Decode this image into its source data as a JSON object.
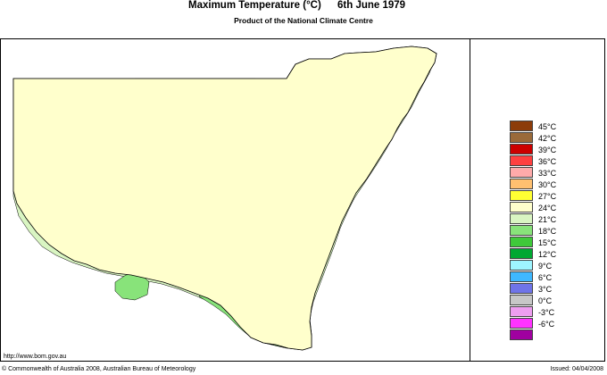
{
  "header": {
    "title": "Maximum Temperature (°C)",
    "date": "6th June 1979",
    "subtitle": "Product of the National Climate Centre"
  },
  "legend": {
    "items": [
      {
        "label": "45°C",
        "color": "#8c3c0a"
      },
      {
        "label": "42°C",
        "color": "#9a6a3a"
      },
      {
        "label": "39°C",
        "color": "#cc0000"
      },
      {
        "label": "36°C",
        "color": "#ff4040"
      },
      {
        "label": "33°C",
        "color": "#ffaaaa"
      },
      {
        "label": "30°C",
        "color": "#ffc070"
      },
      {
        "label": "27°C",
        "color": "#ffff33"
      },
      {
        "label": "24°C",
        "color": "#ffffcc"
      },
      {
        "label": "21°C",
        "color": "#d9f5c2"
      },
      {
        "label": "18°C",
        "color": "#88e37a"
      },
      {
        "label": "15°C",
        "color": "#3fc93a"
      },
      {
        "label": "12°C",
        "color": "#00a832"
      },
      {
        "label": "9°C",
        "color": "#9ef5ff"
      },
      {
        "label": "6°C",
        "color": "#3fb8ff"
      },
      {
        "label": "3°C",
        "color": "#6f74e8"
      },
      {
        "label": "0°C",
        "color": "#c7c7c7"
      },
      {
        "label": "-3°C",
        "color": "#ee9ef0"
      },
      {
        "label": "-6°C",
        "color": "#ff33ff"
      },
      {
        "label": "",
        "color": "#a000a0"
      }
    ]
  },
  "map": {
    "colors": {
      "c24": "#ffffcc",
      "c21": "#d9f5c2",
      "c18": "#88e37a",
      "c15": "#3fc93a",
      "c12": "#00a832",
      "c9": "#9ef5ff",
      "c6": "#3fb8ff",
      "c3": "#6f74e8",
      "c27": "#ffff33"
    }
  },
  "footer": {
    "url": "http://www.bom.gov.au",
    "copyright": "© Commonwealth of Australia 2008, Australian Bureau of Meteorology",
    "issued": "Issued: 04/04/2008"
  }
}
